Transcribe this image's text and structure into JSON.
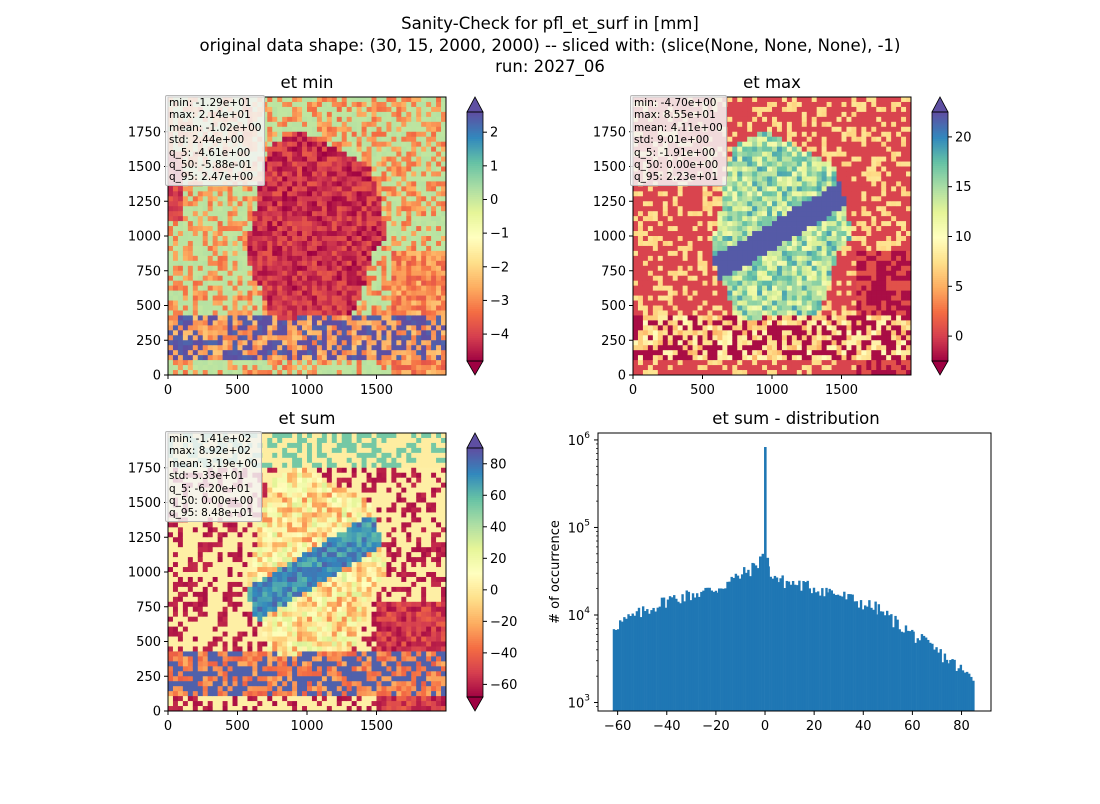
{
  "suptitle": [
    "Sanity-Check for pfl_et_surf in [mm]",
    "original data shape: (30, 15, 2000, 2000) -- sliced with: (slice(None, None, None), -1)",
    "run: 2027_06"
  ],
  "colors": {
    "spectral": [
      "#9e0142",
      "#d53e4f",
      "#f46d43",
      "#fdae61",
      "#fee08b",
      "#ffffbf",
      "#e6f598",
      "#abdda4",
      "#66c2a5",
      "#3288bd",
      "#5e4fa2"
    ],
    "hist_bar": "#1f77b4"
  },
  "chart_data": [
    {
      "type": "heatmap",
      "title": "et min",
      "x_ticks": [
        0,
        500,
        1000,
        1500
      ],
      "y_ticks": [
        0,
        250,
        500,
        750,
        1000,
        1250,
        1500,
        1750
      ],
      "xlim": [
        0,
        2000
      ],
      "ylim": [
        0,
        2000
      ],
      "colorbar": {
        "range": [
          -4.8,
          2.6
        ],
        "ticks": [
          2,
          1,
          0,
          -1,
          -2,
          -3,
          -4
        ],
        "tick_labels": [
          "2",
          "1",
          "0",
          "−1",
          "−2",
          "−3",
          "−4"
        ],
        "extend": "both"
      },
      "stats": [
        "min: -1.29e+01",
        "max: 2.14e+01",
        "mean: -1.02e+00",
        "std: 2.44e+00",
        "q_5: -4.61e+00",
        "q_50: -5.88e-01",
        "q_95: 2.47e+00"
      ]
    },
    {
      "type": "heatmap",
      "title": "et max",
      "x_ticks": [
        0,
        500,
        1000,
        1500
      ],
      "y_ticks": [
        0,
        250,
        500,
        750,
        1000,
        1250,
        1500,
        1750
      ],
      "xlim": [
        0,
        2000
      ],
      "ylim": [
        0,
        2000
      ],
      "colorbar": {
        "range": [
          -2.5,
          22.5
        ],
        "ticks": [
          20,
          15,
          10,
          5,
          0
        ],
        "tick_labels": [
          "20",
          "15",
          "10",
          "5",
          "0"
        ],
        "extend": "both"
      },
      "stats": [
        "min: -4.70e+00",
        "max: 8.55e+01",
        "mean: 4.11e+00",
        "std: 9.01e+00",
        "q_5: -1.91e+00",
        "q_50: 0.00e+00",
        "q_95: 2.23e+01"
      ]
    },
    {
      "type": "heatmap",
      "title": "et sum",
      "x_ticks": [
        0,
        500,
        1000,
        1500
      ],
      "y_ticks": [
        0,
        250,
        500,
        750,
        1000,
        1250,
        1500,
        1750
      ],
      "xlim": [
        0,
        2000
      ],
      "ylim": [
        0,
        2000
      ],
      "colorbar": {
        "range": [
          -68,
          90
        ],
        "ticks": [
          80,
          60,
          40,
          20,
          0,
          -20,
          -40,
          -60
        ],
        "tick_labels": [
          "80",
          "60",
          "40",
          "20",
          "0",
          "−20",
          "−40",
          "−60"
        ],
        "extend": "both"
      },
      "stats": [
        "min: -1.41e+02",
        "max: 8.92e+02",
        "mean: 3.19e+00",
        "std: 5.33e+01",
        "q_5: -6.20e+01",
        "q_50: 0.00e+00",
        "q_95: 8.48e+01"
      ]
    },
    {
      "type": "bar",
      "title": "et sum - distribution",
      "ylabel": "# of occurrence",
      "xlabel": "",
      "xlim": [
        -68,
        92
      ],
      "yscale": "log",
      "ylim": [
        800,
        1200000
      ],
      "x_ticks": [
        -60,
        -40,
        -20,
        0,
        20,
        40,
        60,
        80
      ],
      "x_tick_labels": [
        "−60",
        "−40",
        "−20",
        "0",
        "20",
        "40",
        "60",
        "80"
      ],
      "y_ticks": [
        1000,
        10000,
        100000,
        1000000
      ],
      "y_tick_labels": [
        [
          "10",
          "3"
        ],
        [
          "10",
          "4"
        ],
        [
          "10",
          "5"
        ],
        [
          "10",
          "6"
        ]
      ],
      "bins": [
        {
          "x0": -62,
          "x1": -40,
          "v0": 7500,
          "v1": 15000
        },
        {
          "x0": -40,
          "x1": -20,
          "v0": 15000,
          "v1": 20000
        },
        {
          "x0": -20,
          "x1": -5,
          "v0": 20000,
          "v1": 35000
        },
        {
          "x0": -5,
          "x1": -1,
          "v0": 35000,
          "v1": 50000
        },
        {
          "x0": 1,
          "x1": 5,
          "v0": 32000,
          "v1": 26000
        },
        {
          "x0": 5,
          "x1": 25,
          "v0": 25000,
          "v1": 19000
        },
        {
          "x0": 25,
          "x1": 45,
          "v0": 19000,
          "v1": 12000
        },
        {
          "x0": 45,
          "x1": 60,
          "v0": 12000,
          "v1": 6000
        },
        {
          "x0": 60,
          "x1": 75,
          "v0": 6000,
          "v1": 3000
        },
        {
          "x0": 75,
          "x1": 84.5,
          "v0": 3000,
          "v1": 1800
        }
      ],
      "spikes": [
        {
          "x": -1,
          "value": 50000
        },
        {
          "x": 0,
          "value": 830000
        },
        {
          "x": 1,
          "value": 45000
        }
      ]
    }
  ]
}
